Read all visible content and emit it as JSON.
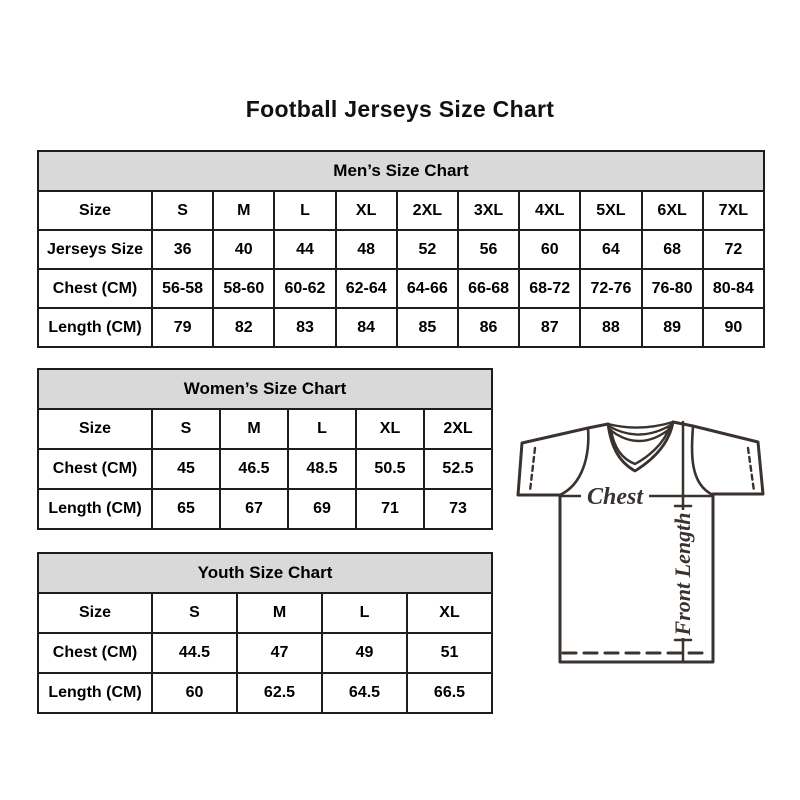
{
  "page": {
    "title": "Football Jerseys Size Chart"
  },
  "colors": {
    "background": "#ffffff",
    "table_header_bg": "#d9d9d9",
    "table_border": "#1d1d1d",
    "text": "#000000",
    "jersey_line": "#39322e"
  },
  "tables": [
    {
      "id": "mens",
      "header": "Men’s Size Chart",
      "label_column": "Size",
      "columns": [
        "S",
        "M",
        "L",
        "XL",
        "2XL",
        "3XL",
        "4XL",
        "5XL",
        "6XL",
        "7XL"
      ],
      "rows": [
        {
          "label": "Jerseys Size",
          "values": [
            "36",
            "40",
            "44",
            "48",
            "52",
            "56",
            "60",
            "64",
            "68",
            "72"
          ]
        },
        {
          "label": "Chest (CM)",
          "values": [
            "56-58",
            "58-60",
            "60-62",
            "62-64",
            "64-66",
            "66-68",
            "68-72",
            "72-76",
            "76-80",
            "80-84"
          ]
        },
        {
          "label": "Length (CM)",
          "values": [
            "79",
            "82",
            "83",
            "84",
            "85",
            "86",
            "87",
            "88",
            "89",
            "90"
          ]
        }
      ]
    },
    {
      "id": "womens",
      "header": "Women’s Size Chart",
      "label_column": "Size",
      "columns": [
        "S",
        "M",
        "L",
        "XL",
        "2XL"
      ],
      "rows": [
        {
          "label": "Chest (CM)",
          "values": [
            "45",
            "46.5",
            "48.5",
            "50.5",
            "52.5"
          ]
        },
        {
          "label": "Length (CM)",
          "values": [
            "65",
            "67",
            "69",
            "71",
            "73"
          ]
        }
      ]
    },
    {
      "id": "youth",
      "header": "Youth Size Chart",
      "label_column": "Size",
      "columns": [
        "S",
        "M",
        "L",
        "XL"
      ],
      "rows": [
        {
          "label": "Chest (CM)",
          "values": [
            "44.5",
            "47",
            "49",
            "51"
          ]
        },
        {
          "label": "Length (CM)",
          "values": [
            "60",
            "62.5",
            "64.5",
            "66.5"
          ]
        }
      ]
    }
  ],
  "jersey_diagram": {
    "chest_label": "Chest",
    "front_length_label": "Front Length"
  }
}
